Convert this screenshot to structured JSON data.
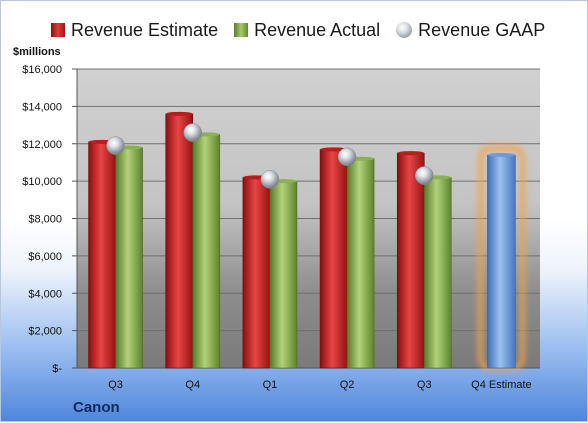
{
  "chart_data": {
    "type": "bar",
    "categories": [
      "Q3",
      "Q4",
      "Q1",
      "Q2",
      "Q3",
      "Q4 Estimate"
    ],
    "series": [
      {
        "name": "Revenue Estimate",
        "values": [
          12100,
          13600,
          10200,
          11700,
          11500,
          null
        ]
      },
      {
        "name": "Revenue Actual",
        "values": [
          11800,
          12500,
          10000,
          11200,
          10200,
          null
        ]
      },
      {
        "name": "Revenue GAAP",
        "values": [
          11900,
          12600,
          10100,
          11300,
          10300,
          null
        ]
      }
    ],
    "forecast": {
      "category": "Q4 Estimate",
      "value": 11400
    },
    "ylabel": "$millions",
    "yticks": [
      "$-",
      "$2,000",
      "$4,000",
      "$6,000",
      "$8,000",
      "$10,000",
      "$12,000",
      "$14,000",
      "$16,000"
    ],
    "ylim": [
      0,
      16000
    ],
    "grid": true,
    "legend_position": "top"
  },
  "legend": {
    "estimate": "Revenue Estimate",
    "actual": "Revenue Actual",
    "gaap": "Revenue GAAP"
  },
  "company": "Canon",
  "colors": {
    "estimate": "#c21f1f",
    "actual": "#8db050",
    "gaap": "#b9bec6",
    "forecast": "#6f9bd8",
    "forecast_glow": "#f3a24a"
  }
}
